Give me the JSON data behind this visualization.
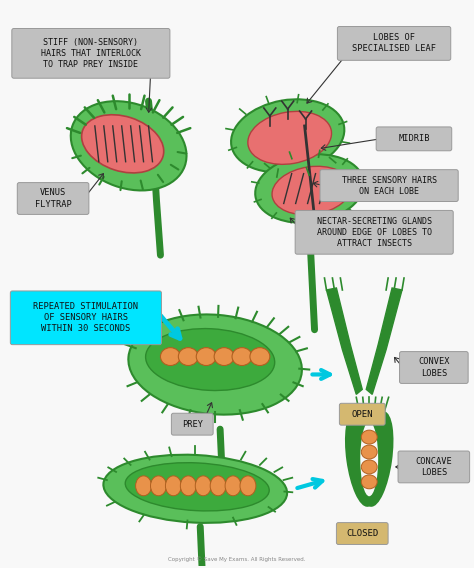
{
  "bg_color": "#f8f8f8",
  "annotations": {
    "stiff_hairs": "STIFF (NON-SENSORY)\nHAIRS THAT INTERLOCK\nTO TRAP PREY INSIDE",
    "venus_flytrap": "VENUS\nFLYTRAP",
    "lobes_leaf": "LOBES OF\nSPECIALISED LEAF",
    "midrib": "MIDRIB",
    "three_hairs": "THREE SENSORY HAIRS\nON EACH LOBE",
    "nectar": "NECTAR-SECRETING GLANDS\nAROUND EDGE OF LOBES TO\nATTRACT INSECTS",
    "repeated": "REPEATED STIMULATION\nOF SENSORY HAIRS\nWITHIN 30 SECONDS",
    "prey": "PREY",
    "open": "OPEN",
    "convex": "CONVEX\nLOBES",
    "closed": "CLOSED",
    "concave": "CONCAVE\nLOBES"
  },
  "colors": {
    "green_outer": "#5abf5a",
    "green_dark": "#3a9a3a",
    "green_deeper": "#2d8a2d",
    "green_inner": "#3daa3d",
    "pink_red": "#e87070",
    "cyan": "#00c8d8",
    "cyan_box": "#00e5ff",
    "cyan_arrow": "#00c8e0",
    "orange": "#e8924a",
    "orange_dark": "#b06020",
    "label_bg": "#c0c0c0",
    "label_bg_tan": "#d4b870",
    "white": "#ffffff",
    "black": "#111111",
    "dark_line": "#333333"
  }
}
